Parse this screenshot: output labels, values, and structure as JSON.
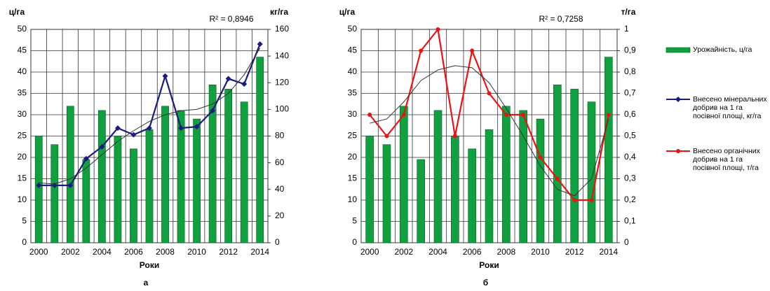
{
  "chart_data": [
    {
      "type": "bar",
      "y_label": "ц/га",
      "y2_label": "кг/га",
      "x_label": "Роки",
      "caption": "а",
      "annotation": "R² = 0,8946",
      "categories": [
        "2000",
        null,
        "2002",
        null,
        "2004",
        null,
        "2006",
        null,
        "2008",
        null,
        "2010",
        null,
        "2012",
        null,
        "2014"
      ],
      "ylim": [
        0,
        50
      ],
      "yticks": [
        0,
        5,
        10,
        15,
        20,
        25,
        30,
        35,
        40,
        45,
        50
      ],
      "y2lim": [
        0,
        160
      ],
      "y2ticks": [
        0,
        20,
        40,
        60,
        80,
        100,
        120,
        140,
        160
      ],
      "grid": true,
      "series": [
        {
          "type": "bar",
          "color": "#10a040",
          "values": [
            25,
            23,
            32,
            19.5,
            31,
            25,
            22,
            26.5,
            32,
            31,
            29,
            37,
            36,
            33,
            43.5
          ]
        },
        {
          "type": "line",
          "axis": "y2",
          "name": "Внесено мінеральних добрив на 1 га посівної площі, кг/га",
          "color": "#1a1a80",
          "marker": "diamond",
          "values": [
            43,
            43,
            43,
            63,
            72,
            86,
            81,
            86,
            125,
            86,
            87,
            99,
            123,
            119,
            149
          ]
        },
        {
          "type": "line",
          "axis": "y2",
          "color": "#333333",
          "values": [
            45,
            44,
            48,
            56,
            66,
            76,
            84,
            91,
            96,
            99,
            100,
            104,
            112,
            126,
            146
          ]
        }
      ]
    },
    {
      "type": "bar",
      "y_label": "ц/га",
      "y2_label": "т/га",
      "x_label": "Роки",
      "caption": "б",
      "annotation": "R² = 0,7258",
      "categories": [
        "2000",
        null,
        "2002",
        null,
        "2004",
        null,
        "2006",
        null,
        "2008",
        null,
        "2010",
        null,
        "2012",
        null,
        "2014"
      ],
      "ylim": [
        0,
        50
      ],
      "yticks": [
        0,
        5,
        10,
        15,
        20,
        25,
        30,
        35,
        40,
        45,
        50
      ],
      "y2lim": [
        0,
        1
      ],
      "y2ticks": [
        0,
        {
          "value": 0.1,
          "label": "0,1"
        },
        {
          "value": 0.2,
          "label": "0,2"
        },
        {
          "value": 0.3,
          "label": "0,3"
        },
        {
          "value": 0.4,
          "label": "0,4"
        },
        {
          "value": 0.5,
          "label": "0,5"
        },
        {
          "value": 0.6,
          "label": "0,6"
        },
        {
          "value": 0.7,
          "label": "0,7"
        },
        {
          "value": 0.8,
          "label": "0,8"
        },
        {
          "value": 0.9,
          "label": "0,9"
        },
        1
      ],
      "grid": true,
      "series": [
        {
          "type": "bar",
          "name": "Урожайність, ц/га",
          "color": "#10a040",
          "values": [
            25,
            23,
            32,
            19.5,
            31,
            25,
            22,
            26.5,
            32,
            31,
            29,
            37,
            36,
            33,
            43.5
          ]
        },
        {
          "type": "line",
          "axis": "y2",
          "name": "Внесено органічних добрив на 1 га посівної площі, т/га",
          "color": "#ee1111",
          "marker": "circle",
          "values": [
            0.6,
            0.5,
            0.6,
            0.9,
            1.0,
            0.5,
            0.9,
            0.7,
            0.6,
            0.6,
            0.4,
            0.3,
            0.2,
            0.2,
            0.6
          ]
        },
        {
          "type": "line",
          "axis": "y2",
          "color": "#333333",
          "values": [
            0.56,
            0.58,
            0.66,
            0.76,
            0.81,
            0.83,
            0.82,
            0.75,
            0.63,
            0.5,
            0.36,
            0.25,
            0.22,
            0.3,
            0.58
          ]
        }
      ]
    }
  ]
}
